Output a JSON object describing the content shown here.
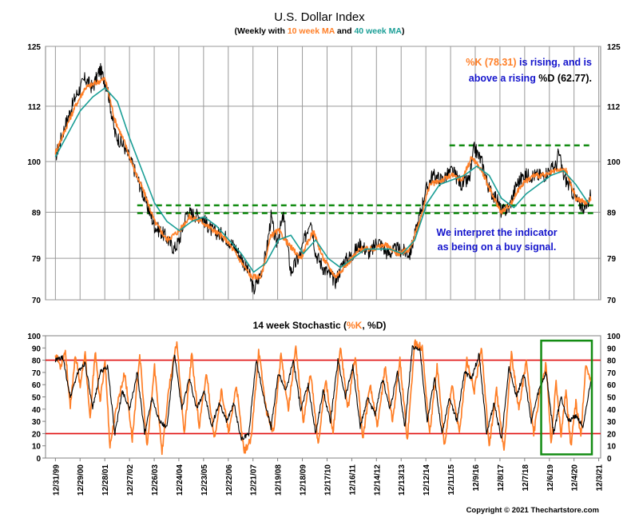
{
  "chart_data": [
    {
      "type": "line",
      "title": "U.S. Dollar Index",
      "subtitle": {
        "prefix": "(Weekly with ",
        "ma10": "10 week MA",
        "middle": " and ",
        "ma40": "40 week MA",
        "suffix": ")"
      },
      "y_ticks": [
        70,
        79,
        89,
        100,
        112,
        125
      ],
      "ylim": [
        70,
        125
      ],
      "xlim": [
        1999.6,
        2022.0
      ],
      "x_ticks_dates": [
        "12/31/99",
        "12/29/00",
        "12/28/01",
        "12/27/02",
        "12/26/03",
        "12/24/04",
        "12/23/05",
        "12/22/06",
        "12/21/07",
        "12/19/08",
        "12/18/09",
        "12/17/10",
        "12/16/11",
        "12/14/12",
        "12/13/13",
        "12/12/14",
        "12/11/15",
        "12/9/16",
        "12/8/17",
        "12/7/18",
        "12/6/19",
        "12/4/20",
        "12/3/21"
      ],
      "grid": true,
      "series": [
        {
          "name": "U.S. Dollar Index",
          "color": "#000000",
          "x": [
            2000.0,
            2000.4,
            2000.8,
            2001.2,
            2001.5,
            2001.8,
            2002.1,
            2002.4,
            2002.8,
            2003.2,
            2003.6,
            2004.0,
            2004.4,
            2004.8,
            2005.0,
            2005.3,
            2005.9,
            2006.3,
            2006.8,
            2007.3,
            2007.8,
            2008.0,
            2008.3,
            2008.5,
            2008.7,
            2008.9,
            2009.2,
            2009.5,
            2009.9,
            2010.3,
            2010.5,
            2010.8,
            2011.3,
            2011.6,
            2012.0,
            2012.3,
            2012.7,
            2013.0,
            2013.4,
            2013.8,
            2014.3,
            2014.6,
            2014.9,
            2015.2,
            2015.6,
            2016.0,
            2016.4,
            2016.7,
            2016.9,
            2017.2,
            2017.5,
            2017.8,
            2018.0,
            2018.3,
            2018.6,
            2018.9,
            2019.3,
            2019.7,
            2019.9,
            2020.2,
            2020.3,
            2020.5,
            2020.8,
            2021.1,
            2021.4,
            2021.6
          ],
          "y": [
            101,
            108,
            114,
            118,
            116,
            120,
            116,
            106,
            103,
            98,
            92,
            86,
            84,
            81,
            83,
            89,
            88,
            85,
            84,
            81,
            76,
            72,
            76,
            80,
            88,
            82,
            88,
            76,
            80,
            88,
            80,
            77,
            74,
            78,
            80,
            82,
            80,
            83,
            80,
            81,
            80,
            86,
            93,
            97,
            96,
            98,
            95,
            96,
            103,
            100,
            94,
            92,
            89,
            90,
            95,
            97,
            97,
            97,
            98,
            99,
            102,
            97,
            94,
            91,
            90,
            93
          ]
        },
        {
          "name": "10 week MA",
          "color": "#ff7f27",
          "x": [
            2000.0,
            2000.4,
            2000.8,
            2001.2,
            2001.6,
            2002.0,
            2002.4,
            2002.8,
            2003.2,
            2003.6,
            2004.0,
            2004.5,
            2005.0,
            2005.4,
            2005.9,
            2006.4,
            2006.9,
            2007.4,
            2007.9,
            2008.3,
            2008.7,
            2009.0,
            2009.4,
            2009.9,
            2010.4,
            2010.8,
            2011.3,
            2011.8,
            2012.3,
            2012.8,
            2013.3,
            2013.8,
            2014.3,
            2014.7,
            2015.1,
            2015.6,
            2016.0,
            2016.4,
            2016.8,
            2017.2,
            2017.6,
            2018.0,
            2018.4,
            2018.8,
            2019.3,
            2019.8,
            2020.2,
            2020.6,
            2021.0,
            2021.4,
            2021.6
          ],
          "y": [
            102,
            107,
            112,
            116,
            117,
            118,
            109,
            104,
            98,
            93,
            87,
            83,
            85,
            88,
            87,
            85,
            83,
            79,
            75,
            75,
            84,
            85,
            82,
            79,
            85,
            79,
            75,
            78,
            81,
            81,
            82,
            80,
            81,
            87,
            95,
            96,
            97,
            96,
            101,
            98,
            93,
            89,
            91,
            95,
            97,
            97,
            98,
            98,
            92,
            91,
            92
          ]
        },
        {
          "name": "40 week MA",
          "color": "#1a9e96",
          "x": [
            2000.0,
            2000.5,
            2001.0,
            2001.5,
            2002.0,
            2002.5,
            2003.0,
            2003.5,
            2004.0,
            2004.5,
            2005.0,
            2005.5,
            2006.0,
            2006.5,
            2007.0,
            2007.5,
            2008.0,
            2008.5,
            2009.0,
            2009.5,
            2010.0,
            2010.5,
            2011.0,
            2011.5,
            2012.0,
            2012.5,
            2013.0,
            2013.5,
            2014.0,
            2014.5,
            2015.0,
            2015.5,
            2016.0,
            2016.5,
            2017.0,
            2017.5,
            2018.0,
            2018.5,
            2019.0,
            2019.5,
            2020.0,
            2020.5,
            2021.0,
            2021.5
          ],
          "y": [
            101,
            106,
            111,
            114,
            116,
            113,
            105,
            98,
            91,
            87,
            85,
            87,
            88,
            86,
            83,
            80,
            76,
            78,
            83,
            84,
            80,
            83,
            79,
            77,
            79,
            81,
            81,
            81,
            80,
            83,
            91,
            95,
            96,
            97,
            99,
            97,
            92,
            90,
            93,
            95,
            97,
            98,
            95,
            91
          ]
        }
      ],
      "reference_lines": [
        {
          "y": 103.5,
          "x_start": 2015.9,
          "x_end": 2021.7,
          "color": "#138c13"
        },
        {
          "y": 90.5,
          "x_start": 2003.3,
          "x_end": 2021.7,
          "color": "#138c13"
        },
        {
          "y": 88.8,
          "x_start": 2003.3,
          "x_end": 2021.7,
          "color": "#138c13"
        }
      ],
      "annotations": {
        "top_right": {
          "k_label": "%K (78.31)",
          "k_rest": " is rising, and is",
          "line2_prefix": "above a rising ",
          "d_label": "%D (62.77).",
          "k_color": "#ff7f27",
          "text_color": "#1414cc"
        },
        "middle_right": {
          "line1": "We interpret the indicator",
          "line2": "as being on a buy signal.",
          "color": "#1414cc"
        }
      }
    },
    {
      "type": "line",
      "title": {
        "prefix": "14 week Stochastic (",
        "k": "%K",
        "comma": ", ",
        "d": "%D",
        "suffix": ")"
      },
      "y_ticks": [
        0,
        10,
        20,
        30,
        40,
        50,
        60,
        70,
        80,
        90,
        100
      ],
      "ylim": [
        0,
        100
      ],
      "xlim": [
        1999.6,
        2022.0
      ],
      "grid": false,
      "reference_lines": [
        {
          "y": 80,
          "color": "#e01010"
        },
        {
          "y": 20,
          "color": "#e01010"
        }
      ],
      "highlight_box": {
        "x_start": 2019.6,
        "x_end": 2022.0,
        "y_low": 3,
        "y_high": 96,
        "color": "#138c13"
      },
      "series": [
        {
          "name": "%K",
          "color": "#ff7f27",
          "x": [
            2000.0,
            2000.2,
            2000.4,
            2000.6,
            2000.8,
            2001.0,
            2001.2,
            2001.4,
            2001.6,
            2001.8,
            2002.0,
            2002.2,
            2002.5,
            2002.8,
            2003.1,
            2003.4,
            2003.7,
            2004.0,
            2004.3,
            2004.6,
            2004.9,
            2005.2,
            2005.5,
            2005.8,
            2006.1,
            2006.4,
            2006.7,
            2007.0,
            2007.3,
            2007.6,
            2007.9,
            2008.2,
            2008.5,
            2008.8,
            2009.1,
            2009.4,
            2009.7,
            2010.0,
            2010.3,
            2010.6,
            2010.9,
            2011.2,
            2011.5,
            2011.8,
            2012.1,
            2012.4,
            2012.7,
            2013.0,
            2013.3,
            2013.6,
            2013.9,
            2014.2,
            2014.5,
            2014.8,
            2015.1,
            2015.4,
            2015.7,
            2016.0,
            2016.3,
            2016.6,
            2016.9,
            2017.2,
            2017.5,
            2017.8,
            2018.1,
            2018.4,
            2018.7,
            2019.0,
            2019.3,
            2019.6,
            2019.8,
            2020.0,
            2020.2,
            2020.4,
            2020.6,
            2020.8,
            2021.0,
            2021.2,
            2021.4,
            2021.6
          ],
          "y": [
            85,
            75,
            88,
            40,
            85,
            60,
            85,
            30,
            88,
            45,
            80,
            10,
            45,
            70,
            15,
            85,
            8,
            75,
            5,
            60,
            95,
            20,
            85,
            25,
            70,
            15,
            55,
            20,
            60,
            5,
            15,
            88,
            40,
            20,
            85,
            40,
            90,
            30,
            70,
            10,
            65,
            20,
            90,
            40,
            85,
            15,
            60,
            25,
            75,
            30,
            80,
            15,
            95,
            90,
            20,
            75,
            10,
            60,
            20,
            80,
            55,
            90,
            10,
            55,
            5,
            85,
            40,
            80,
            20,
            60,
            78,
            12,
            62,
            20,
            55,
            10,
            45,
            18,
            78,
            62
          ]
        },
        {
          "name": "%D",
          "color": "#000000",
          "x": [
            2000.0,
            2000.3,
            2000.6,
            2000.9,
            2001.2,
            2001.5,
            2001.8,
            2002.1,
            2002.4,
            2002.7,
            2003.0,
            2003.3,
            2003.6,
            2003.9,
            2004.2,
            2004.5,
            2004.8,
            2005.1,
            2005.4,
            2005.7,
            2006.0,
            2006.3,
            2006.6,
            2006.9,
            2007.2,
            2007.5,
            2007.8,
            2008.1,
            2008.4,
            2008.7,
            2009.0,
            2009.3,
            2009.6,
            2009.9,
            2010.2,
            2010.5,
            2010.8,
            2011.1,
            2011.4,
            2011.7,
            2012.0,
            2012.3,
            2012.6,
            2012.9,
            2013.2,
            2013.5,
            2013.8,
            2014.1,
            2014.4,
            2014.7,
            2015.0,
            2015.3,
            2015.6,
            2015.9,
            2016.2,
            2016.5,
            2016.8,
            2017.1,
            2017.4,
            2017.7,
            2018.0,
            2018.3,
            2018.6,
            2018.9,
            2019.2,
            2019.5,
            2019.8,
            2020.1,
            2020.4,
            2020.7,
            2021.0,
            2021.3,
            2021.6
          ],
          "y": [
            80,
            82,
            50,
            70,
            78,
            40,
            70,
            75,
            20,
            55,
            40,
            70,
            20,
            50,
            30,
            25,
            85,
            40,
            65,
            40,
            55,
            25,
            45,
            30,
            45,
            15,
            20,
            80,
            50,
            25,
            70,
            55,
            80,
            40,
            60,
            20,
            55,
            30,
            80,
            50,
            75,
            25,
            50,
            35,
            65,
            40,
            70,
            25,
            90,
            90,
            30,
            65,
            20,
            50,
            30,
            70,
            65,
            85,
            20,
            45,
            15,
            75,
            50,
            70,
            30,
            55,
            70,
            20,
            50,
            30,
            35,
            25,
            63
          ]
        }
      ]
    }
  ],
  "footer": {
    "copyright": "Copyright © 2021 Thechartstore.com"
  }
}
